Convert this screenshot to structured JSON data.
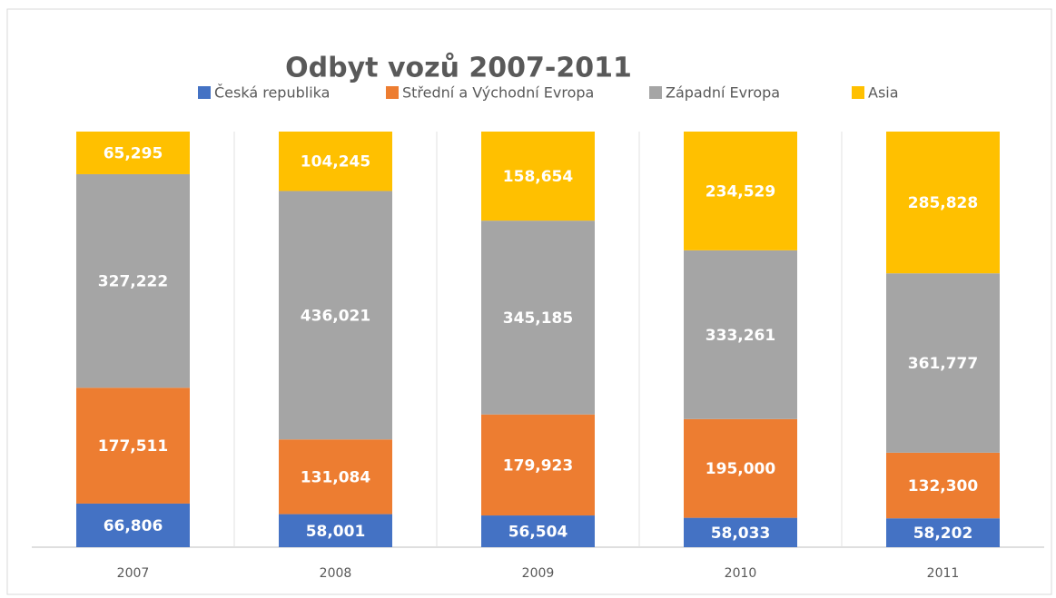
{
  "chart_data": {
    "type": "bar",
    "stacking": "percent",
    "title": "Odbyt vozů 2007-2011",
    "categories": [
      "2007",
      "2008",
      "2009",
      "2010",
      "2011"
    ],
    "series": [
      {
        "name": "Česká republika",
        "color": "#4472c4",
        "values": [
          66806,
          58001,
          56504,
          58033,
          58202
        ],
        "value_labels": [
          "66,806",
          "58,001",
          "56,504",
          "58,033",
          "58,202"
        ]
      },
      {
        "name": "Střední a Východní Evropa",
        "color": "#ed7d31",
        "values": [
          177511,
          131084,
          179923,
          195000,
          132300
        ],
        "value_labels": [
          "177,511",
          "131,084",
          "179,923",
          "195,000",
          "132,300"
        ]
      },
      {
        "name": "Západní Evropa",
        "color": "#a5a5a5",
        "values": [
          327222,
          436021,
          345185,
          333261,
          361777
        ],
        "value_labels": [
          "327,222",
          "436,021",
          "345,185",
          "333,261",
          "361,777"
        ]
      },
      {
        "name": "Asia",
        "color": "#ffc000",
        "values": [
          65295,
          104245,
          158654,
          234529,
          285828
        ],
        "value_labels": [
          "65,295",
          "104,245",
          "158,654",
          "234,529",
          "285,828"
        ]
      }
    ],
    "legend": "top"
  }
}
